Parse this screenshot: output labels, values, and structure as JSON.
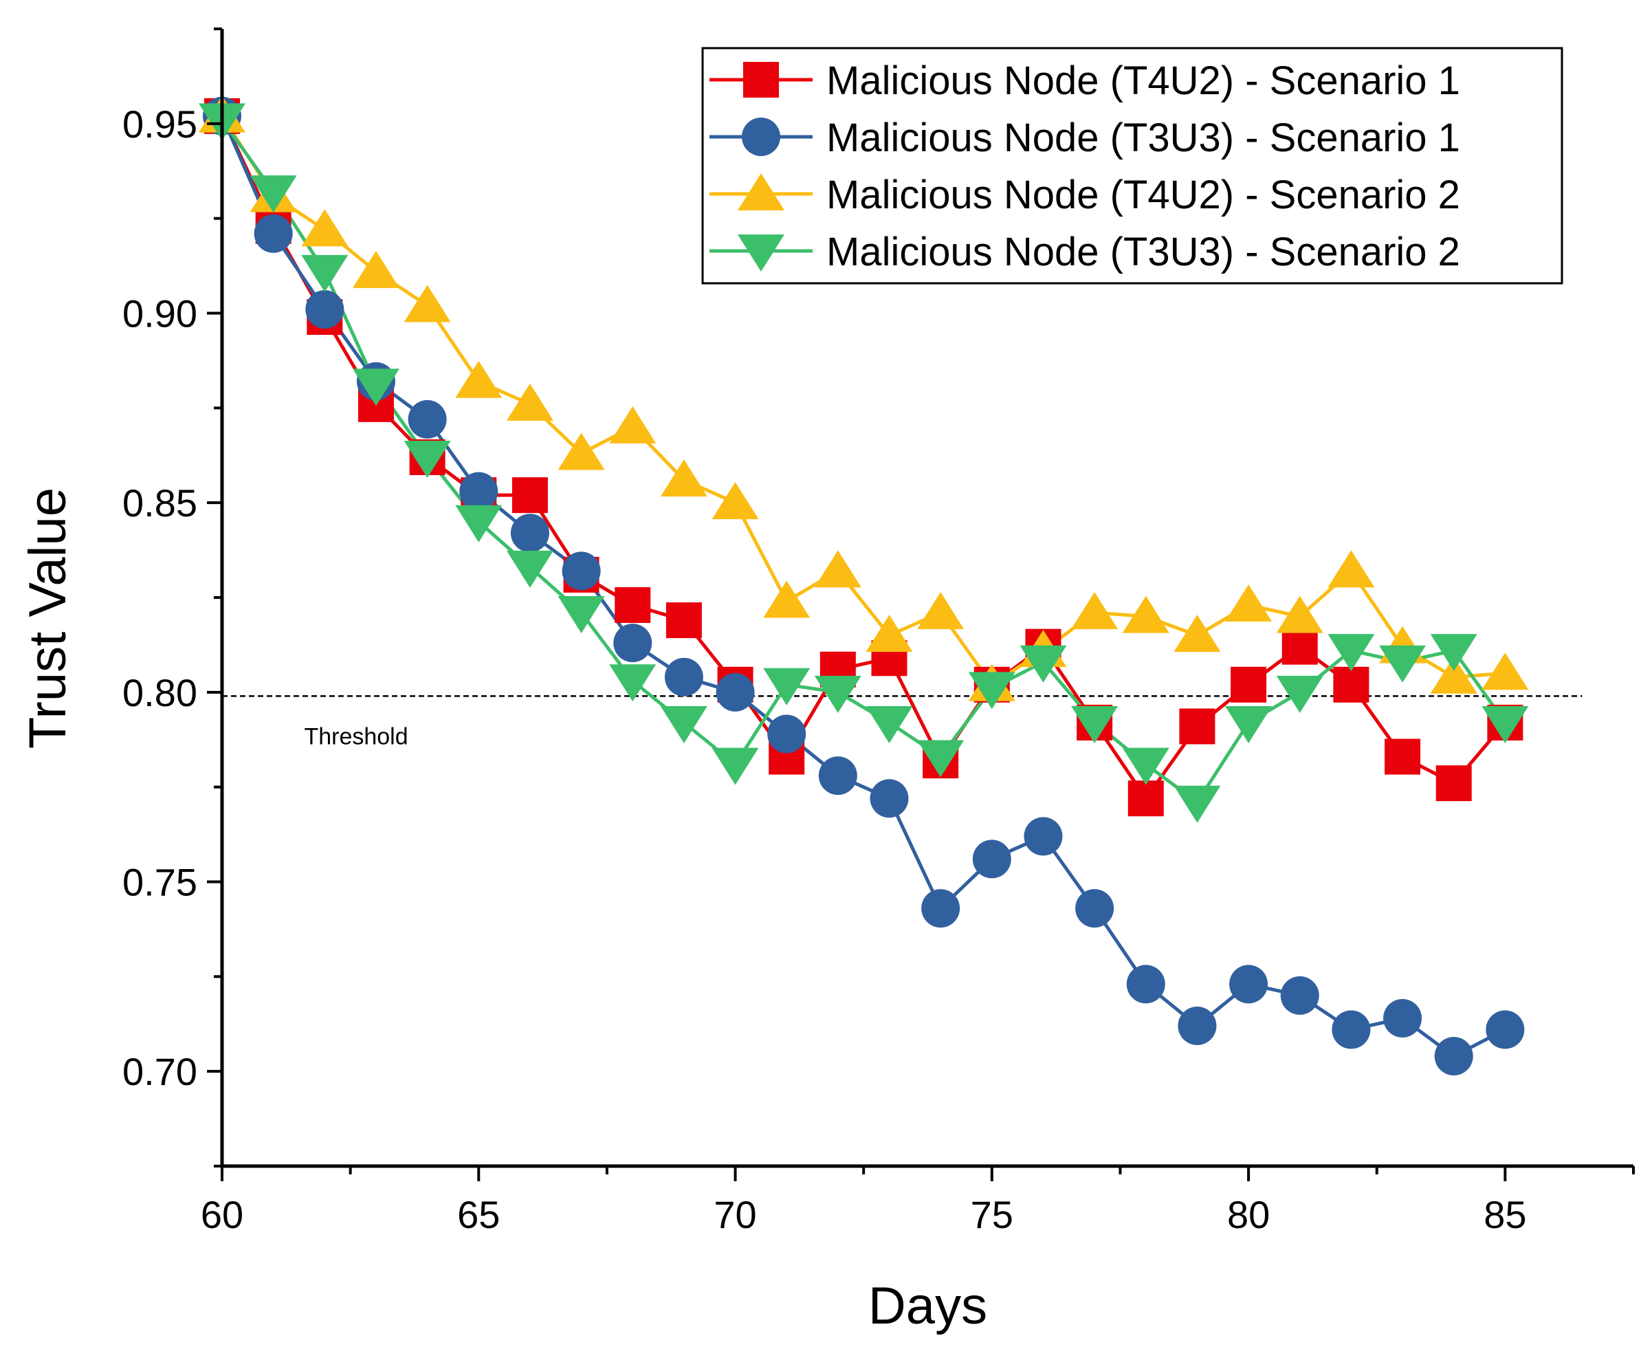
{
  "chart_data": {
    "type": "line",
    "xlabel": "Days",
    "ylabel": "Trust Value",
    "xlim": [
      60,
      87.5
    ],
    "ylim": [
      0.675,
      0.975
    ],
    "xticks": [
      60,
      65,
      70,
      75,
      80,
      85
    ],
    "xtick_labels": [
      "60",
      "65",
      "70",
      "75",
      "80",
      "85"
    ],
    "yticks": [
      0.7,
      0.75,
      0.8,
      0.85,
      0.9,
      0.95
    ],
    "ytick_labels": [
      "0.70",
      "0.75",
      "0.80",
      "0.85",
      "0.90",
      "0.95"
    ],
    "grid": false,
    "legend_position": "top-right",
    "x": [
      60,
      61,
      62,
      63,
      64,
      65,
      66,
      67,
      68,
      69,
      70,
      71,
      72,
      73,
      74,
      75,
      76,
      77,
      78,
      79,
      80,
      81,
      82,
      83,
      84,
      85
    ],
    "series": [
      {
        "name": "Malicious Node (T4U2) - Scenario 1",
        "color": "#e8000b",
        "marker": "square",
        "values": [
          0.952,
          0.923,
          0.899,
          0.876,
          0.862,
          0.852,
          0.852,
          0.831,
          0.823,
          0.819,
          0.802,
          0.783,
          0.806,
          0.809,
          0.782,
          0.802,
          0.812,
          0.792,
          0.772,
          0.791,
          0.802,
          0.812,
          0.802,
          0.783,
          0.776,
          0.792
        ]
      },
      {
        "name": "Malicious Node (T3U3) - Scenario 1",
        "color": "#31609e",
        "marker": "circle",
        "values": [
          0.952,
          0.921,
          0.901,
          0.882,
          0.872,
          0.853,
          0.842,
          0.832,
          0.813,
          0.804,
          0.8,
          0.789,
          0.778,
          0.772,
          0.743,
          0.756,
          0.762,
          0.743,
          0.723,
          0.712,
          0.723,
          0.72,
          0.711,
          0.714,
          0.704,
          0.711
        ]
      },
      {
        "name": "Malicious Node (T4U2) - Scenario 2",
        "color": "#fbbc13",
        "marker": "triangle-up",
        "values": [
          0.952,
          0.931,
          0.922,
          0.911,
          0.902,
          0.882,
          0.876,
          0.863,
          0.87,
          0.856,
          0.85,
          0.824,
          0.832,
          0.815,
          0.821,
          0.802,
          0.811,
          0.821,
          0.82,
          0.815,
          0.823,
          0.82,
          0.832,
          0.812,
          0.804,
          0.805
        ]
      },
      {
        "name": "Malicious Node (T3U3) - Scenario 2",
        "color": "#3cbf6a",
        "marker": "triangle-down",
        "values": [
          0.951,
          0.932,
          0.911,
          0.881,
          0.862,
          0.845,
          0.833,
          0.821,
          0.803,
          0.792,
          0.781,
          0.802,
          0.8,
          0.792,
          0.783,
          0.801,
          0.808,
          0.792,
          0.781,
          0.771,
          0.792,
          0.8,
          0.811,
          0.808,
          0.811,
          0.792
        ]
      }
    ],
    "reference_lines": [
      {
        "axis": "y",
        "value": 0.799,
        "style": "dashed",
        "label": "Threshold"
      }
    ]
  }
}
